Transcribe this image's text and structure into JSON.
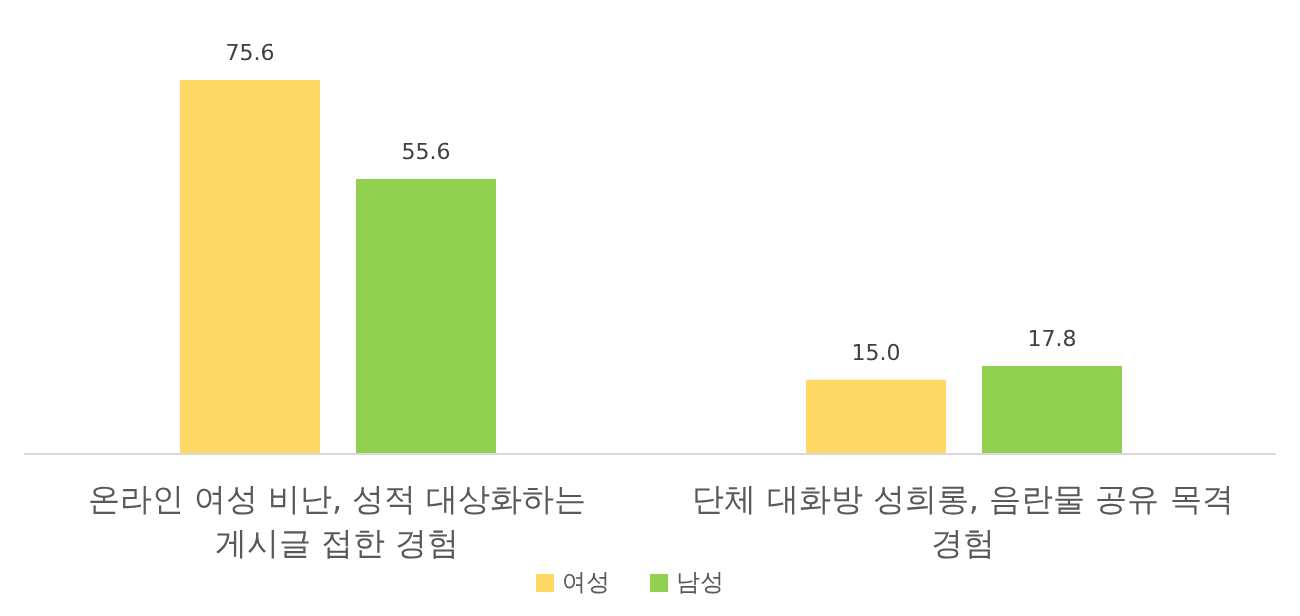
{
  "chart_data": {
    "type": "bar",
    "categories": [
      "온라인 여성 비난, 성적 대상화하는 게시글 접한 경험",
      "단체 대화방 성희롱, 음란물 공유 목격 경험"
    ],
    "series": [
      {
        "name": "여성",
        "color": "#ffd966",
        "values": [
          75.6,
          15.0
        ],
        "value_labels": [
          "75.6",
          "15.0"
        ]
      },
      {
        "name": "남성",
        "color": "#92d050",
        "values": [
          55.6,
          17.8
        ],
        "value_labels": [
          "55.6",
          "17.8"
        ]
      }
    ],
    "legend": "bottom"
  }
}
